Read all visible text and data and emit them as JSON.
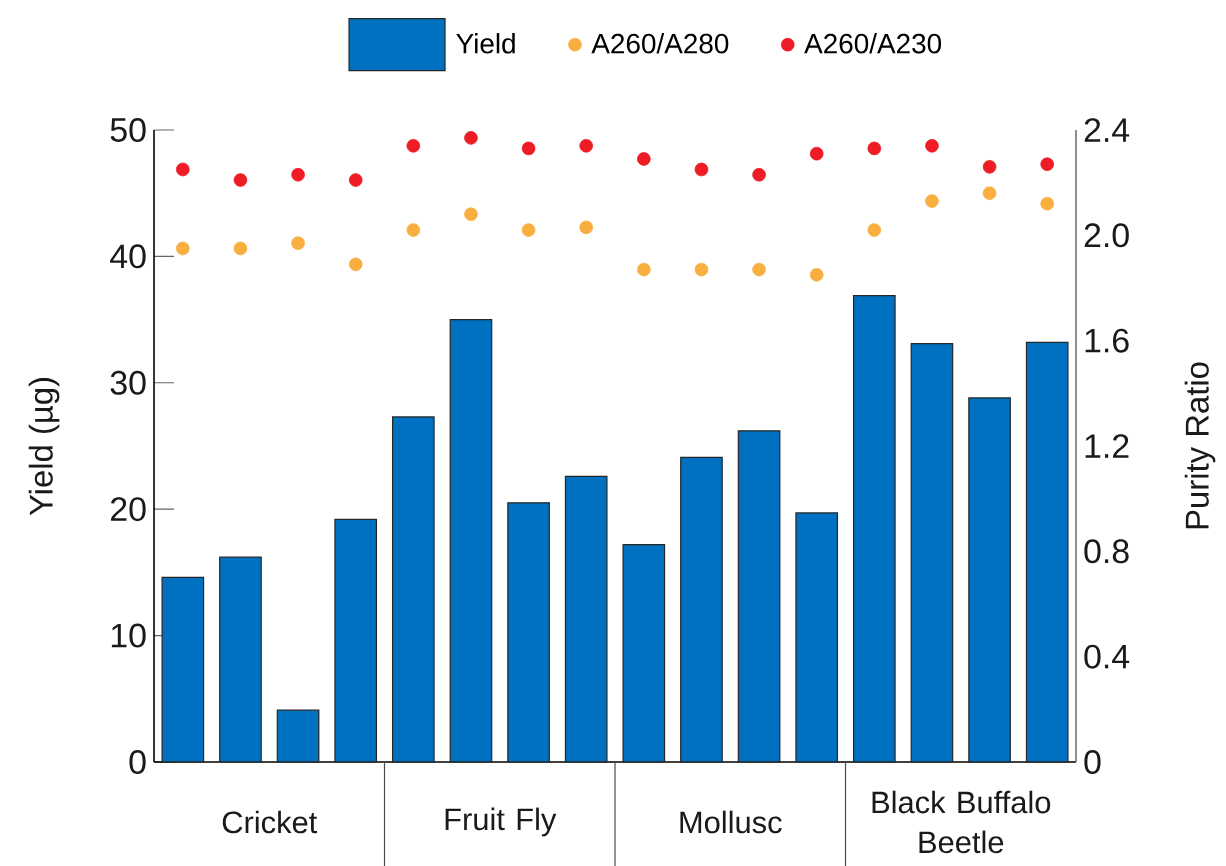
{
  "chart_data": {
    "type": "bar",
    "categories": [
      null,
      null,
      null,
      null,
      null,
      null,
      null,
      null,
      null,
      null,
      null,
      null,
      null,
      null,
      null,
      null
    ],
    "series": [
      {
        "name": "Yield",
        "type": "bar",
        "color": "#0070c0",
        "values": [
          14.6,
          16.2,
          4.1,
          19.2,
          27.3,
          35.0,
          20.5,
          22.6,
          17.2,
          24.1,
          26.2,
          19.7,
          36.9,
          33.1,
          28.8,
          33.2
        ]
      },
      {
        "name": "A260/A280",
        "type": "scatter",
        "axis": "y2",
        "color": "#f9ae40",
        "values": [
          1.95,
          1.95,
          1.97,
          1.89,
          2.02,
          2.08,
          2.02,
          2.03,
          1.87,
          1.87,
          1.87,
          1.85,
          2.02,
          2.13,
          2.16,
          2.12
        ]
      },
      {
        "name": "A260/A230",
        "type": "scatter",
        "axis": "y2",
        "color": "#ee1c25",
        "values": [
          2.25,
          2.21,
          2.23,
          2.21,
          2.34,
          2.37,
          2.33,
          2.34,
          2.29,
          2.25,
          2.23,
          2.31,
          2.33,
          2.34,
          2.26,
          2.27
        ]
      }
    ],
    "ylabel": "Yield (µg)",
    "y2label": "Purity Ratio",
    "ylim": [
      0,
      50
    ],
    "yticks": [
      0,
      10,
      20,
      30,
      40,
      50
    ],
    "y2lim": [
      0,
      2.4
    ],
    "y2ticks": [
      0,
      0.4,
      0.8,
      1.2,
      1.6,
      {
        "value": 2,
        "label": "2.0"
      },
      2.4
    ],
    "annotations": [
      "Cricket",
      "Fruit Fly",
      "Mollusc",
      "Black Buffalo Beetle"
    ],
    "marker": "circle",
    "legend": "top"
  }
}
